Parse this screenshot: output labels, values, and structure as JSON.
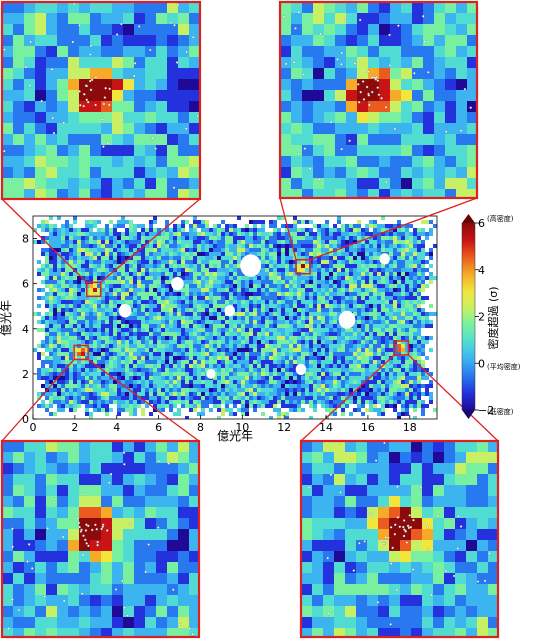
{
  "chart_data": {
    "type": "heatmap",
    "xlabel": "億光年",
    "ylabel": "億光年",
    "xlim": [
      0,
      19.3
    ],
    "ylim": [
      0,
      9
    ],
    "xticks": [
      "0",
      "2",
      "4",
      "6",
      "8",
      "10",
      "12",
      "14",
      "16",
      "18"
    ],
    "yticks": [
      "0",
      "2",
      "4",
      "6",
      "8"
    ],
    "colorbar": {
      "label": "密度超過 (σ)",
      "range": [
        -2,
        6
      ],
      "ticks": [
        "−2",
        "0",
        "2",
        "4",
        "6"
      ],
      "tick_values": [
        -2,
        0,
        2,
        4,
        6
      ],
      "annotations": {
        "high": "(高密度)",
        "mean": "(平均密度)",
        "low": "(低密度)"
      },
      "colors": [
        "#1e0a96",
        "#2332dc",
        "#2878f0",
        "#3cb4f0",
        "#50dcd2",
        "#78f0a0",
        "#c8f064",
        "#f0e63c",
        "#f5aa28",
        "#eb5a1e",
        "#c81414",
        "#8c0a0a"
      ]
    },
    "highlighted_regions": [
      {
        "x": 2.9,
        "y": 5.75,
        "inset": "top-left"
      },
      {
        "x": 12.9,
        "y": 6.75,
        "inset": "top-right"
      },
      {
        "x": 2.3,
        "y": 2.95,
        "inset": "bottom-left"
      },
      {
        "x": 17.6,
        "y": 3.15,
        "inset": "bottom-right"
      }
    ],
    "grid": false
  },
  "colors": {
    "frame": "#e02020",
    "background": "#ffffff"
  }
}
